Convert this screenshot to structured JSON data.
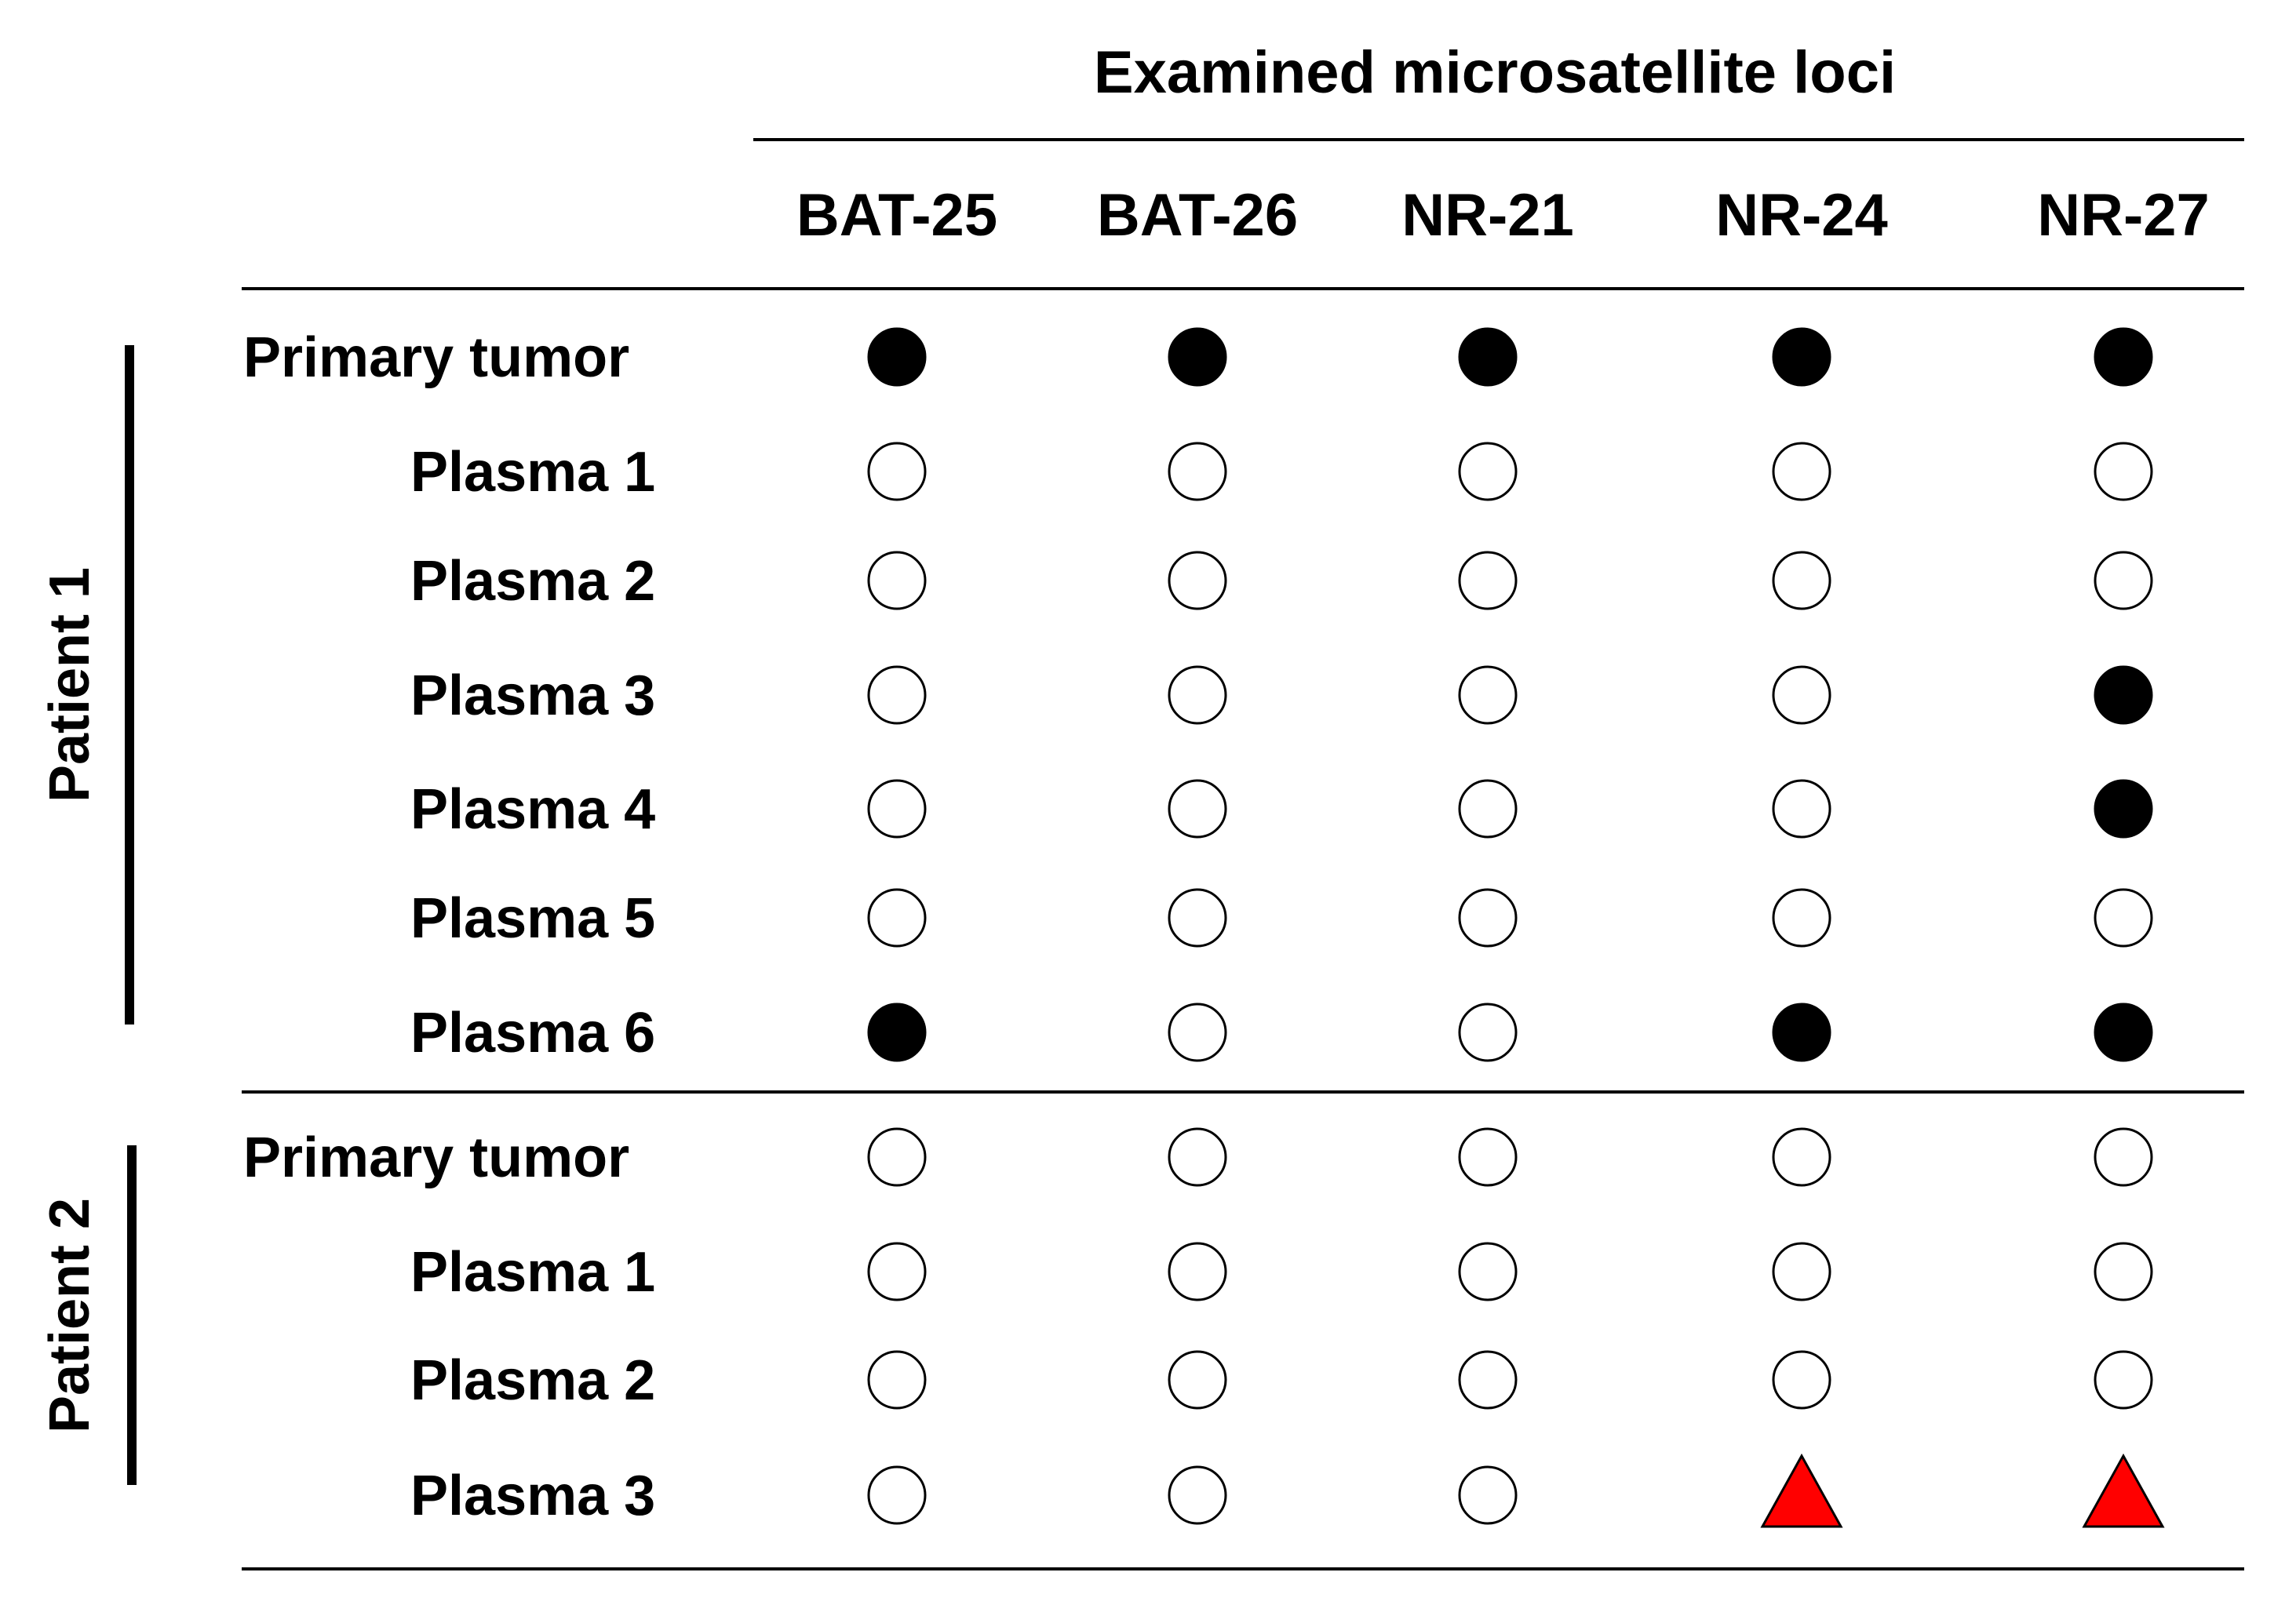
{
  "title": "Examined microsatellite loci",
  "loci": [
    "BAT-25",
    "BAT-26",
    "NR-21",
    "NR-24",
    "NR-27"
  ],
  "groups": [
    {
      "name": "Patient 1",
      "rows": [
        {
          "label": "Primary tumor",
          "marks": [
            "filled",
            "filled",
            "filled",
            "filled",
            "filled"
          ]
        },
        {
          "label": "Plasma 1",
          "marks": [
            "open",
            "open",
            "open",
            "open",
            "open"
          ]
        },
        {
          "label": "Plasma 2",
          "marks": [
            "open",
            "open",
            "open",
            "open",
            "open"
          ]
        },
        {
          "label": "Plasma 3",
          "marks": [
            "open",
            "open",
            "open",
            "open",
            "filled"
          ]
        },
        {
          "label": "Plasma 4",
          "marks": [
            "open",
            "open",
            "open",
            "open",
            "filled"
          ]
        },
        {
          "label": "Plasma 5",
          "marks": [
            "open",
            "open",
            "open",
            "open",
            "open"
          ]
        },
        {
          "label": "Plasma 6",
          "marks": [
            "filled",
            "open",
            "open",
            "filled",
            "filled"
          ]
        }
      ]
    },
    {
      "name": "Patient 2",
      "rows": [
        {
          "label": "Primary tumor",
          "marks": [
            "open",
            "open",
            "open",
            "open",
            "open"
          ]
        },
        {
          "label": "Plasma 1",
          "marks": [
            "open",
            "open",
            "open",
            "open",
            "open"
          ]
        },
        {
          "label": "Plasma 2",
          "marks": [
            "open",
            "open",
            "open",
            "open",
            "open"
          ]
        },
        {
          "label": "Plasma 3",
          "marks": [
            "open",
            "open",
            "open",
            "triangle",
            "triangle"
          ]
        }
      ]
    }
  ],
  "colors": {
    "filled": "#000000",
    "open_fill": "#ffffff",
    "stroke": "#000000",
    "triangle": "#ff0000"
  }
}
